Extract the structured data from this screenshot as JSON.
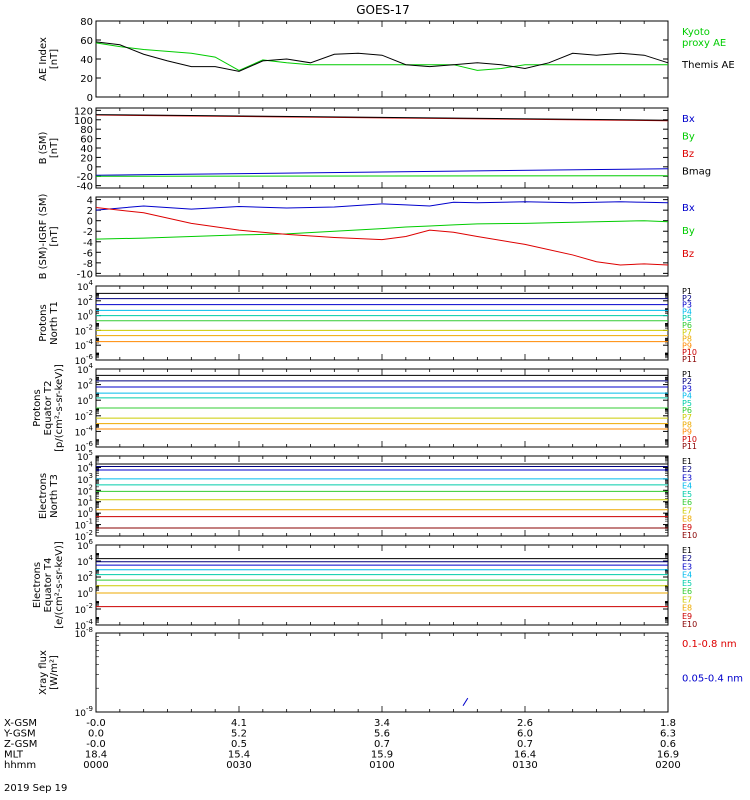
{
  "title": "GOES-17",
  "date_label": "2019 Sep 19",
  "colors": {
    "black": "#000000",
    "green": "#00cc00",
    "blue": "#0000cc",
    "red": "#dd0000",
    "navy": "#000080",
    "cyan": "#00bbee",
    "teal": "#00ccaa",
    "lime": "#33cc33",
    "yellow": "#cccc00",
    "gold": "#eeaa00",
    "orange": "#ff8800",
    "crimson": "#cc0000",
    "maroon": "#880000"
  },
  "x_axis": {
    "rows": [
      {
        "label": "X-GSM",
        "values": [
          "-0.0",
          "4.1",
          "3.4",
          "2.6",
          "1.8"
        ]
      },
      {
        "label": "Y-GSM",
        "values": [
          "0.0",
          "5.2",
          "5.6",
          "6.0",
          "6.3"
        ]
      },
      {
        "label": "Z-GSM",
        "values": [
          "-0.0",
          "0.5",
          "0.7",
          "0.7",
          "0.6"
        ]
      },
      {
        "label": "MLT",
        "values": [
          "18.4",
          "15.4",
          "15.9",
          "16.4",
          "16.9"
        ]
      },
      {
        "label": "hhmm",
        "values": [
          "0000",
          "0030",
          "0100",
          "0130",
          "0200"
        ]
      }
    ]
  },
  "chart_data": [
    {
      "type": "line",
      "id": "ae",
      "ylabel": "AE Index\n[nT]",
      "ylim": [
        0,
        80
      ],
      "yticks": [
        0,
        20,
        40,
        60,
        80
      ],
      "x": [
        0,
        5,
        10,
        15,
        20,
        25,
        30,
        35,
        40,
        45,
        50,
        55,
        60,
        65,
        70,
        75,
        80,
        85,
        90,
        95,
        100,
        105,
        110,
        115,
        120
      ],
      "series": [
        {
          "name": "Kyoto\nproxy AE",
          "color": "#00cc00",
          "values": [
            57,
            53,
            50,
            48,
            46,
            42,
            28,
            39,
            36,
            34,
            34,
            34,
            34,
            34,
            34,
            34,
            28,
            30,
            34,
            34,
            34,
            34,
            34,
            34,
            34
          ]
        },
        {
          "name": "Themis AE",
          "color": "#000000",
          "values": [
            58,
            55,
            45,
            38,
            32,
            32,
            27,
            38,
            40,
            36,
            45,
            46,
            44,
            34,
            32,
            34,
            36,
            34,
            30,
            36,
            46,
            44,
            46,
            44,
            36
          ]
        }
      ]
    },
    {
      "type": "line",
      "id": "b_sm",
      "ylabel": "B (SM)\n[nT]",
      "ylim": [
        -45,
        125
      ],
      "yticks": [
        -40,
        -20,
        0,
        20,
        40,
        60,
        80,
        100,
        120
      ],
      "x": [
        0,
        120
      ],
      "series": [
        {
          "name": "Bx",
          "color": "#0000cc",
          "values": [
            -18,
            -4
          ]
        },
        {
          "name": "By",
          "color": "#00cc00",
          "values": [
            -20,
            -19
          ]
        },
        {
          "name": "Bz",
          "color": "#dd0000",
          "values": [
            110,
            98
          ]
        },
        {
          "name": "Bmag",
          "color": "#000000",
          "values": [
            111,
            99
          ]
        }
      ]
    },
    {
      "type": "line",
      "id": "b_igrf",
      "ylabel": "B (SM)-IGRF (SM)\n[nT]",
      "ylim": [
        -10.5,
        4.5
      ],
      "yticks": [
        -10,
        -8,
        -6,
        -4,
        -2,
        0,
        2,
        4
      ],
      "x": [
        0,
        10,
        20,
        30,
        40,
        50,
        60,
        65,
        70,
        75,
        80,
        90,
        100,
        105,
        110,
        115,
        120
      ],
      "series": [
        {
          "name": "Bx",
          "color": "#0000cc",
          "values": [
            2.0,
            2.8,
            2.2,
            2.7,
            2.4,
            2.6,
            3.2,
            3.0,
            2.8,
            3.5,
            3.4,
            3.6,
            3.4,
            3.5,
            3.6,
            3.5,
            3.4
          ]
        },
        {
          "name": "By",
          "color": "#00cc00",
          "values": [
            -3.5,
            -3.3,
            -3.0,
            -2.7,
            -2.5,
            -2.0,
            -1.5,
            -1.2,
            -1.0,
            -0.8,
            -0.6,
            -0.5,
            -0.3,
            -0.2,
            -0.1,
            0.0,
            -0.2
          ]
        },
        {
          "name": "Bz",
          "color": "#dd0000",
          "values": [
            2.5,
            1.5,
            -0.5,
            -1.8,
            -2.6,
            -3.2,
            -3.6,
            -3.0,
            -1.8,
            -2.2,
            -3.0,
            -4.5,
            -6.5,
            -7.8,
            -8.4,
            -8.2,
            -8.4
          ]
        }
      ]
    },
    {
      "type": "line",
      "id": "protons_t1",
      "ylabel": "Protons\nNorth T1",
      "ylog": true,
      "ylim": [
        -6,
        4
      ],
      "ytick_exps": [
        -6,
        -4,
        -2,
        0,
        2,
        4
      ],
      "series": [
        {
          "name": "P1",
          "color": "#000000",
          "value": 1000
        },
        {
          "name": "P2",
          "color": "#000080",
          "value": 200
        },
        {
          "name": "P3",
          "color": "#0000cc",
          "value": 30
        },
        {
          "name": "P4",
          "color": "#00bbee",
          "value": 5
        },
        {
          "name": "P5",
          "color": "#00ccaa",
          "value": 1
        },
        {
          "name": "P6",
          "color": "#33cc33",
          "value": 0.2
        },
        {
          "name": "P7",
          "color": "#cccc00",
          "value": 0.01
        },
        {
          "name": "P8",
          "color": "#eeaa00",
          "value": 0.002
        },
        {
          "name": "P9",
          "color": "#ff8800",
          "value": 0.0003
        },
        {
          "name": "P10",
          "color": "#cc0000",
          "value": null
        },
        {
          "name": "P11",
          "color": "#880000",
          "value": null
        }
      ]
    },
    {
      "type": "line",
      "id": "protons_t2",
      "ylabel": "Protons\nEquator T2\n[p/(cm²-s-sr-keV)]",
      "ylog": true,
      "ylim": [
        -6,
        4
      ],
      "ytick_exps": [
        -6,
        -4,
        -2,
        0,
        2,
        4
      ],
      "series": [
        {
          "name": "P1",
          "color": "#000000",
          "value": 1500
        },
        {
          "name": "P2",
          "color": "#000080",
          "value": 300
        },
        {
          "name": "P3",
          "color": "#0000cc",
          "value": 50
        },
        {
          "name": "P4",
          "color": "#00bbee",
          "value": 8
        },
        {
          "name": "P5",
          "color": "#00ccaa",
          "value": 2
        },
        {
          "name": "P6",
          "color": "#33cc33",
          "value": 0.1
        },
        {
          "name": "P7",
          "color": "#cccc00",
          "value": 0.005
        },
        {
          "name": "P8",
          "color": "#eeaa00",
          "value": 0.001
        },
        {
          "name": "P9",
          "color": "#ff8800",
          "value": 0.0002
        },
        {
          "name": "P10",
          "color": "#cc0000",
          "value": null
        },
        {
          "name": "P11",
          "color": "#880000",
          "value": null
        }
      ]
    },
    {
      "type": "line",
      "id": "electrons_t3",
      "ylabel": "Electrons\nNorth T3",
      "ylog": true,
      "ylim": [
        -2,
        5
      ],
      "ytick_exps": [
        -2,
        -1,
        0,
        1,
        2,
        3,
        4,
        5
      ],
      "series": [
        {
          "name": "E1",
          "color": "#000000",
          "value": 20000
        },
        {
          "name": "E2",
          "color": "#000080",
          "value": 12000
        },
        {
          "name": "E3",
          "color": "#0000cc",
          "value": 6000
        },
        {
          "name": "E4",
          "color": "#00bbee",
          "value": 1000
        },
        {
          "name": "E5",
          "color": "#00ccaa",
          "value": 300
        },
        {
          "name": "E6",
          "color": "#33cc33",
          "value": 80
        },
        {
          "name": "E7",
          "color": "#cccc00",
          "value": 15
        },
        {
          "name": "E8",
          "color": "#eeaa00",
          "value": 2
        },
        {
          "name": "E9",
          "color": "#cc0000",
          "value": 0.5
        },
        {
          "name": "E10",
          "color": "#880000",
          "value": 0.05
        }
      ]
    },
    {
      "type": "line",
      "id": "electrons_t4",
      "ylabel": "Electrons\nEquator T4\n[e/(cm²-s-sr-keV)]",
      "ylog": true,
      "ylim": [
        -4,
        6
      ],
      "ytick_exps": [
        -4,
        -2,
        0,
        2,
        4,
        6
      ],
      "series": [
        {
          "name": "E1",
          "color": "#000000",
          "value": 20000
        },
        {
          "name": "E2",
          "color": "#000080",
          "value": 8000
        },
        {
          "name": "E3",
          "color": "#0000cc",
          "value": 3000
        },
        {
          "name": "E4",
          "color": "#00bbee",
          "value": 800
        },
        {
          "name": "E5",
          "color": "#00ccaa",
          "value": 200
        },
        {
          "name": "E6",
          "color": "#33cc33",
          "value": 40
        },
        {
          "name": "E7",
          "color": "#cccc00",
          "value": 8
        },
        {
          "name": "E8",
          "color": "#eeaa00",
          "value": 1
        },
        {
          "name": "E9",
          "color": "#cc0000",
          "value": 0.02
        },
        {
          "name": "E10",
          "color": "#880000",
          "value": null
        }
      ]
    },
    {
      "type": "line",
      "id": "xray",
      "ylabel": "Xray flux\n[W/m²]",
      "ylog": true,
      "ylim": [
        -9,
        -8
      ],
      "ytick_exps": [
        -9,
        -8
      ],
      "series": [
        {
          "name": "0.1-0.8 nm",
          "color": "#dd0000",
          "values": []
        },
        {
          "name": "0.05-0.4 nm",
          "color": "#0000cc",
          "x": [
            77,
            78
          ],
          "values": [
            1.2e-09,
            1.5e-09
          ]
        }
      ]
    }
  ]
}
